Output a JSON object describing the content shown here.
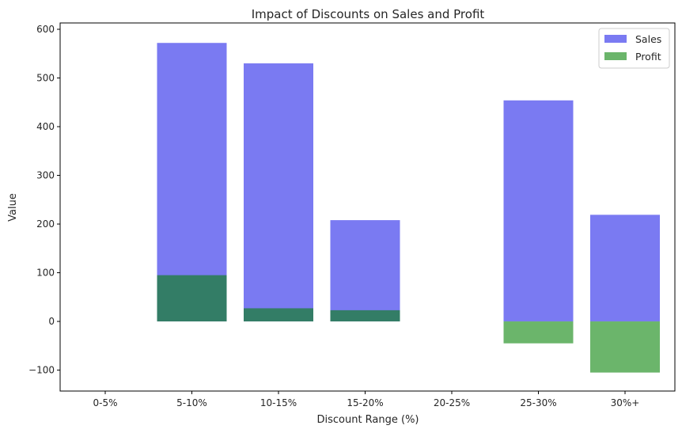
{
  "chart_data": {
    "type": "bar",
    "title": "Impact of Discounts on Sales and Profit",
    "xlabel": "Discount Range (%)",
    "ylabel": "Value",
    "categories": [
      "0-5%",
      "5-10%",
      "10-15%",
      "15-20%",
      "20-25%",
      "25-30%",
      "30%+"
    ],
    "series": [
      {
        "name": "Sales",
        "values": [
          null,
          572,
          530,
          208,
          null,
          454,
          219
        ],
        "color": "#0000e6",
        "opacity": 0.52
      },
      {
        "name": "Profit",
        "values": [
          null,
          95,
          27,
          23,
          null,
          -45,
          -105
        ],
        "color": "#008000",
        "opacity": 0.58
      }
    ],
    "ylim": [
      -143,
      613
    ],
    "yticks": [
      -100,
      0,
      100,
      200,
      300,
      400,
      500,
      600
    ],
    "ytick_labels": [
      "−100",
      "0",
      "100",
      "200",
      "300",
      "400",
      "500",
      "600"
    ],
    "legend": "top-right",
    "grid": false
  }
}
